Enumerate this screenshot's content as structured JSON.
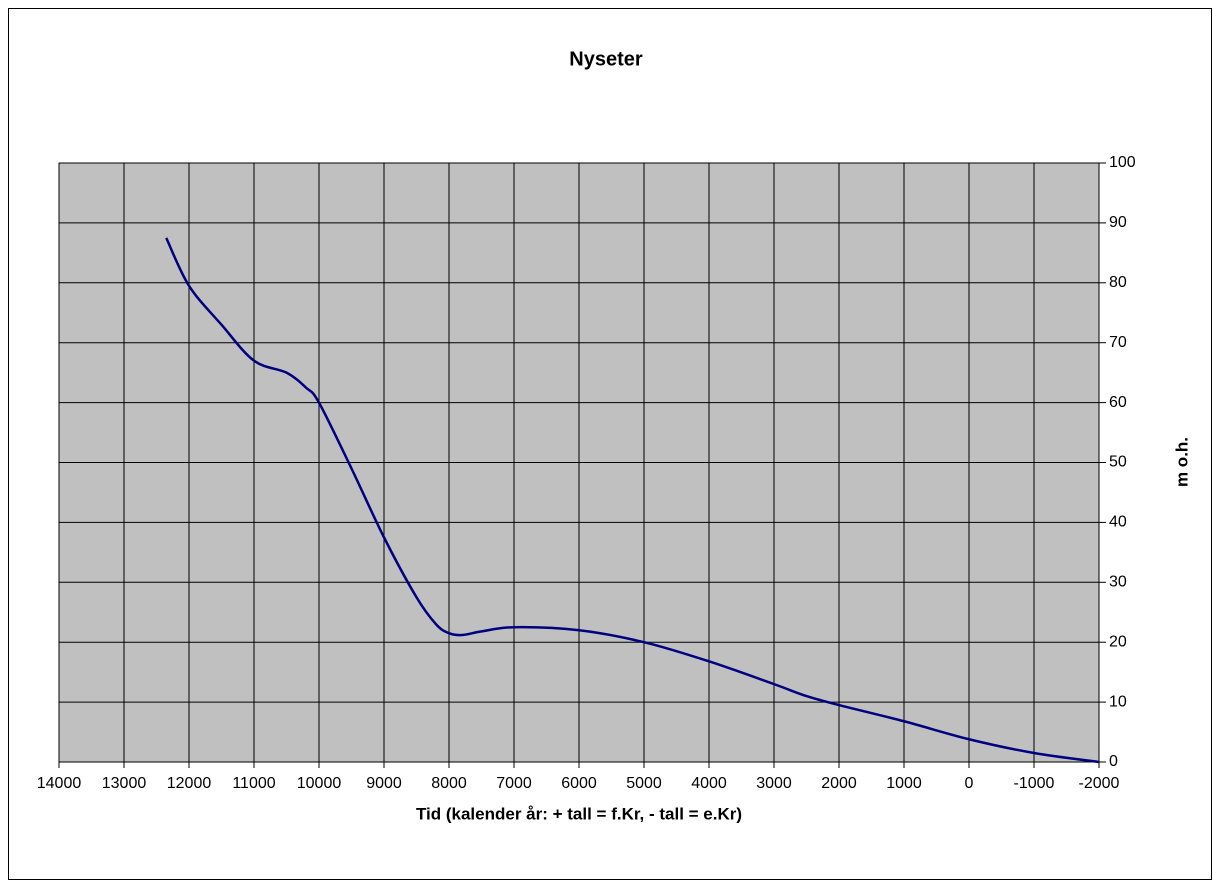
{
  "chart_data": {
    "type": "line",
    "title": "Nyseter",
    "x_label": "Tid (kalender år: + tall = f.Kr, - tall = e.Kr)",
    "y_label": "m o.h.",
    "x": [
      12350,
      12000,
      11500,
      11000,
      10500,
      10200,
      10000,
      9500,
      9000,
      8500,
      8200,
      8000,
      7800,
      7500,
      7000,
      6000,
      5000,
      4000,
      3000,
      2500,
      2000,
      1000,
      0,
      -1000,
      -2000
    ],
    "series": [
      {
        "name": "Nyseter",
        "color": "#000080",
        "values": [
          87.5,
          79.5,
          73,
          67,
          65,
          62.5,
          60,
          49,
          37.5,
          27.5,
          23,
          21.5,
          21.2,
          21.8,
          22.5,
          22,
          20,
          16.8,
          13,
          11,
          9.5,
          6.8,
          3.8,
          1.5,
          0
        ]
      }
    ],
    "xlim": [
      14000,
      -2000
    ],
    "xticks": [
      14000,
      13000,
      12000,
      11000,
      10000,
      9000,
      8000,
      7000,
      6000,
      5000,
      4000,
      3000,
      2000,
      1000,
      0,
      -1000,
      -2000
    ],
    "ylim": [
      0,
      100
    ],
    "yticks": [
      0,
      10,
      20,
      30,
      40,
      50,
      60,
      70,
      80,
      90,
      100
    ],
    "grid": true,
    "plot_background": "#c0c0c0"
  }
}
